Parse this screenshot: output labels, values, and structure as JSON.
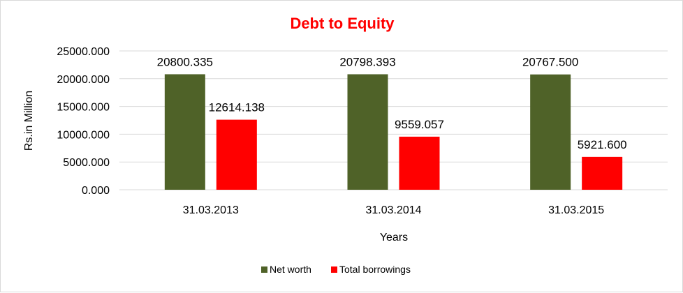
{
  "chart_data": {
    "type": "bar",
    "title": "Debt to Equity",
    "xlabel": "Years",
    "ylabel": "Rs.in Million",
    "categories": [
      "31.03.2013",
      "31.03.2014",
      "31.03.2015"
    ],
    "series": [
      {
        "name": "Net worth",
        "color": "#4f6228",
        "values": [
          20800.335,
          20798.393,
          20767.5
        ],
        "labels": [
          "20800.335",
          "20798.393",
          "20767.500"
        ]
      },
      {
        "name": "Total borrowings",
        "color": "#ff0000",
        "values": [
          12614.138,
          9559.057,
          5921.6
        ],
        "labels": [
          "12614.138",
          "9559.057",
          "5921.600"
        ]
      }
    ],
    "ylim": [
      0,
      25000
    ],
    "yticks": [
      "0.000",
      "5000.000",
      "10000.000",
      "15000.000",
      "20000.000",
      "25000.000"
    ],
    "ytick_values": [
      0,
      5000,
      10000,
      15000,
      20000,
      25000
    ],
    "grid": true,
    "legend_position": "bottom",
    "title_color": "#ff0000",
    "gridline_color": "#d9d9d9"
  }
}
